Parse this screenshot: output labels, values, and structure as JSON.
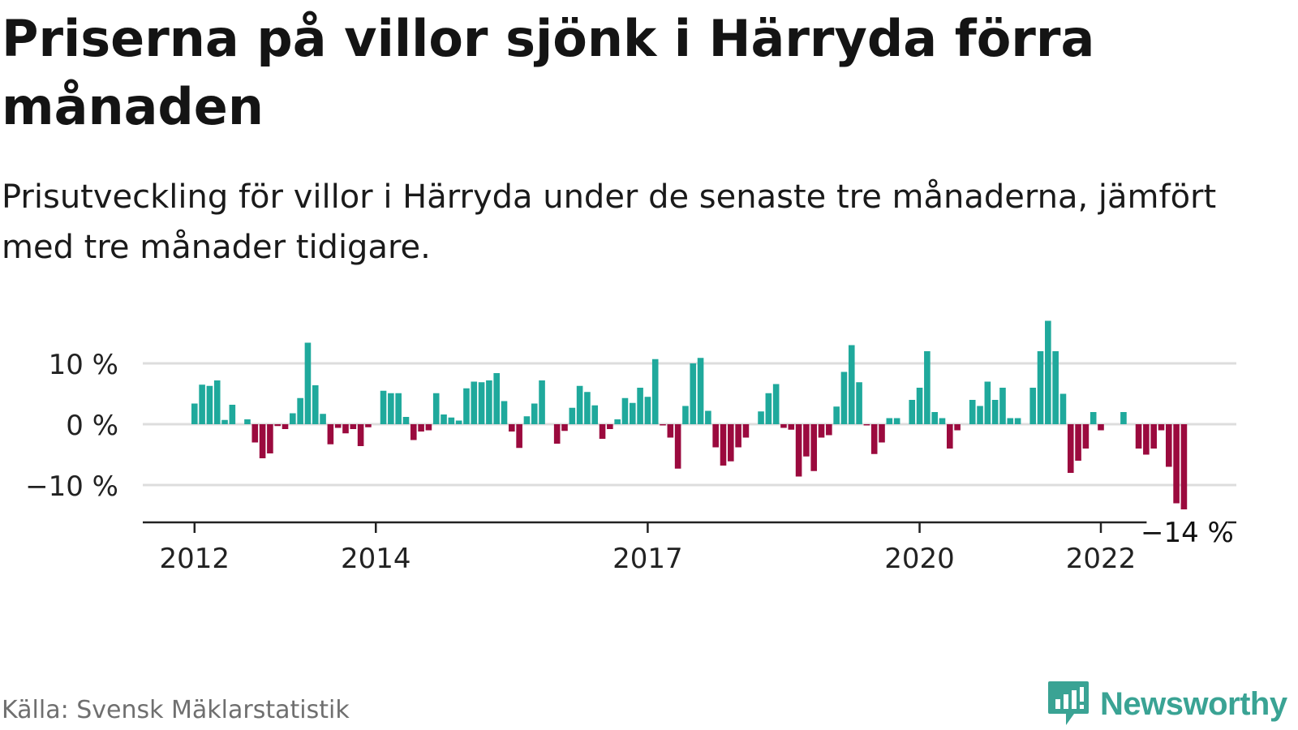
{
  "header": {
    "title": "Priserna på villor sjönk i Härryda förra månaden",
    "subtitle": "Prisutveckling för villor i Härryda under de senaste tre månaderna, jämfört med tre månader tidigare."
  },
  "footer": {
    "source": "Källa: Svensk Mäklarstatistik",
    "brand": "Newsworthy"
  },
  "colors": {
    "positive": "#1fa99c",
    "negative": "#9b0a3e",
    "grid": "#dddddd",
    "axis": "#222222",
    "brand": "#3aa394"
  },
  "chart_data": {
    "type": "bar",
    "title": "Priserna på villor sjönk i Härryda förra månaden",
    "subtitle": "Prisutveckling för villor i Härryda under de senaste tre månaderna, jämfört med tre månader tidigare.",
    "xlabel": "",
    "ylabel": "",
    "unit": "%",
    "ylim": [
      -16.5,
      18
    ],
    "grid": true,
    "y_ticks": [
      {
        "value": 10,
        "label": "10 %"
      },
      {
        "value": 0,
        "label": "0 %"
      },
      {
        "value": -10,
        "label": "−10 %"
      }
    ],
    "x_ticks": [
      {
        "x": "2012-01",
        "label": "2012"
      },
      {
        "x": "2014-01",
        "label": "2014"
      },
      {
        "x": "2017-01",
        "label": "2017"
      },
      {
        "x": "2020-01",
        "label": "2020"
      },
      {
        "x": "2022-01",
        "label": "2022"
      }
    ],
    "annotation": {
      "x": "2022-12",
      "label": "−14 %"
    },
    "x": [
      "2012-01",
      "2012-02",
      "2012-03",
      "2012-04",
      "2012-05",
      "2012-06",
      "2012-07",
      "2012-08",
      "2012-09",
      "2012-10",
      "2012-11",
      "2012-12",
      "2013-01",
      "2013-02",
      "2013-03",
      "2013-04",
      "2013-05",
      "2013-06",
      "2013-07",
      "2013-08",
      "2013-09",
      "2013-10",
      "2013-11",
      "2013-12",
      "2014-01",
      "2014-02",
      "2014-03",
      "2014-04",
      "2014-05",
      "2014-06",
      "2014-07",
      "2014-08",
      "2014-09",
      "2014-10",
      "2014-11",
      "2014-12",
      "2015-01",
      "2015-02",
      "2015-03",
      "2015-04",
      "2015-05",
      "2015-06",
      "2015-07",
      "2015-08",
      "2015-09",
      "2015-10",
      "2015-11",
      "2015-12",
      "2016-01",
      "2016-02",
      "2016-03",
      "2016-04",
      "2016-05",
      "2016-06",
      "2016-07",
      "2016-08",
      "2016-09",
      "2016-10",
      "2016-11",
      "2016-12",
      "2017-01",
      "2017-02",
      "2017-03",
      "2017-04",
      "2017-05",
      "2017-06",
      "2017-07",
      "2017-08",
      "2017-09",
      "2017-10",
      "2017-11",
      "2017-12",
      "2018-01",
      "2018-02",
      "2018-03",
      "2018-04",
      "2018-05",
      "2018-06",
      "2018-07",
      "2018-08",
      "2018-09",
      "2018-10",
      "2018-11",
      "2018-12",
      "2019-01",
      "2019-02",
      "2019-03",
      "2019-04",
      "2019-05",
      "2019-06",
      "2019-07",
      "2019-08",
      "2019-09",
      "2019-10",
      "2019-11",
      "2019-12",
      "2020-01",
      "2020-02",
      "2020-03",
      "2020-04",
      "2020-05",
      "2020-06",
      "2020-07",
      "2020-08",
      "2020-09",
      "2020-10",
      "2020-11",
      "2020-12",
      "2021-01",
      "2021-02",
      "2021-03",
      "2021-04",
      "2021-05",
      "2021-06",
      "2021-07",
      "2021-08",
      "2021-09",
      "2021-10",
      "2021-11",
      "2021-12",
      "2022-01",
      "2022-02",
      "2022-03",
      "2022-04",
      "2022-05",
      "2022-06",
      "2022-07",
      "2022-08",
      "2022-09",
      "2022-10",
      "2022-11",
      "2022-12"
    ],
    "values": [
      3.4,
      6.5,
      6.3,
      7.2,
      0.7,
      3.2,
      null,
      0.8,
      -3.0,
      -5.6,
      -4.8,
      -0.3,
      -0.8,
      1.8,
      4.3,
      13.4,
      6.4,
      1.7,
      -3.3,
      -0.6,
      -1.5,
      -0.8,
      -3.6,
      -0.5,
      null,
      5.5,
      5.1,
      5.1,
      1.2,
      -2.6,
      -1.2,
      -1.0,
      5.1,
      1.6,
      1.1,
      0.6,
      5.9,
      7.0,
      6.9,
      7.2,
      8.4,
      3.8,
      -1.2,
      -3.9,
      1.3,
      3.4,
      7.2,
      null,
      -3.2,
      -1.1,
      2.7,
      6.3,
      5.3,
      3.1,
      -2.4,
      -0.8,
      0.8,
      4.3,
      3.5,
      6.0,
      4.5,
      10.7,
      -0.2,
      -2.2,
      -7.3,
      3.0,
      10.0,
      10.9,
      2.2,
      -3.8,
      -6.8,
      -6.1,
      -3.8,
      -2.2,
      null,
      2.1,
      5.1,
      6.6,
      -0.6,
      -0.9,
      -8.6,
      -5.3,
      -7.7,
      -2.2,
      -1.8,
      2.9,
      8.6,
      13.0,
      6.9,
      -0.2,
      -4.9,
      -3.0,
      1.0,
      1.0,
      null,
      4.0,
      6.0,
      12.0,
      2.0,
      1.0,
      -4.0,
      -1.0,
      null,
      4.0,
      3.0,
      7.0,
      4.0,
      6.0,
      1.0,
      1.0,
      null,
      6.0,
      12.0,
      17.0,
      12.0,
      5.0,
      -8.0,
      -6.0,
      -4.0,
      2.0,
      -1.0,
      null,
      null,
      2.0,
      null,
      -4.0,
      -5.0,
      -4.0,
      -1.0,
      -7.0,
      -13.0,
      -14.0
    ]
  }
}
